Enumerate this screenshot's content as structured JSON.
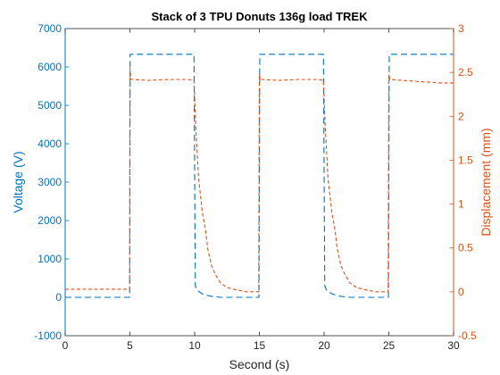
{
  "chart_data": {
    "type": "line",
    "title": "Stack of 3 TPU Donuts 136g load TREK",
    "xlabel": "Second (s)",
    "xlim": [
      0,
      30
    ],
    "x_ticks": [
      "0",
      "5",
      "10",
      "15",
      "20",
      "25",
      "30"
    ],
    "y_left": {
      "label": "Voltage (V)",
      "lim": [
        -1000,
        7000
      ],
      "ticks": [
        "-1000",
        "0",
        "1000",
        "2000",
        "3000",
        "4000",
        "5000",
        "6000",
        "7000"
      ],
      "color": "#0072BD"
    },
    "y_right": {
      "label": "Displacement (mm)",
      "lim": [
        -0.5,
        3
      ],
      "ticks": [
        "-0.5",
        "0",
        "0.5",
        "1",
        "1.5",
        "2",
        "2.5",
        "3"
      ],
      "color": "#D95319"
    },
    "grid": false,
    "series": [
      {
        "axis": "left",
        "color": "#0072BD",
        "style": "dashed",
        "x": [
          0,
          4.98,
          5.02,
          9.95,
          10.05,
          10.2,
          10.6,
          11.2,
          12.0,
          14.97,
          15.03,
          19.95,
          20.05,
          20.2,
          20.6,
          21.2,
          22.0,
          24.97,
          25.03,
          30
        ],
        "y": [
          0,
          0,
          6330,
          6330,
          300,
          180,
          90,
          30,
          0,
          0,
          6330,
          6330,
          300,
          180,
          90,
          30,
          0,
          0,
          6330,
          6330
        ]
      },
      {
        "axis": "right",
        "color": "#D95319",
        "style": "dashed",
        "x": [
          0,
          4.98,
          5.0,
          5.08,
          5.2,
          6.5,
          8.0,
          9.5,
          9.95,
          10.08,
          10.3,
          10.6,
          10.85,
          11.0,
          11.3,
          11.6,
          12.0,
          12.5,
          13.0,
          14.0,
          14.95,
          15.0,
          15.08,
          15.2,
          16.5,
          18.0,
          19.5,
          19.95,
          20.08,
          20.3,
          20.6,
          20.85,
          21.0,
          21.3,
          21.6,
          22.0,
          22.5,
          23.0,
          24.0,
          24.95,
          25.0,
          25.08,
          25.2,
          26.0,
          27.0,
          28.0,
          29.0,
          30.0
        ],
        "y": [
          0.03,
          0.03,
          2.55,
          2.42,
          2.42,
          2.41,
          2.42,
          2.42,
          2.41,
          1.9,
          1.3,
          0.9,
          0.7,
          0.5,
          0.3,
          0.2,
          0.1,
          0.05,
          0.03,
          0.0,
          0.0,
          2.48,
          2.42,
          2.42,
          2.41,
          2.42,
          2.42,
          2.41,
          1.9,
          1.3,
          0.9,
          0.7,
          0.5,
          0.3,
          0.2,
          0.1,
          0.05,
          0.03,
          0.0,
          0.0,
          2.48,
          2.42,
          2.42,
          2.41,
          2.4,
          2.39,
          2.38,
          2.38
        ]
      }
    ]
  }
}
